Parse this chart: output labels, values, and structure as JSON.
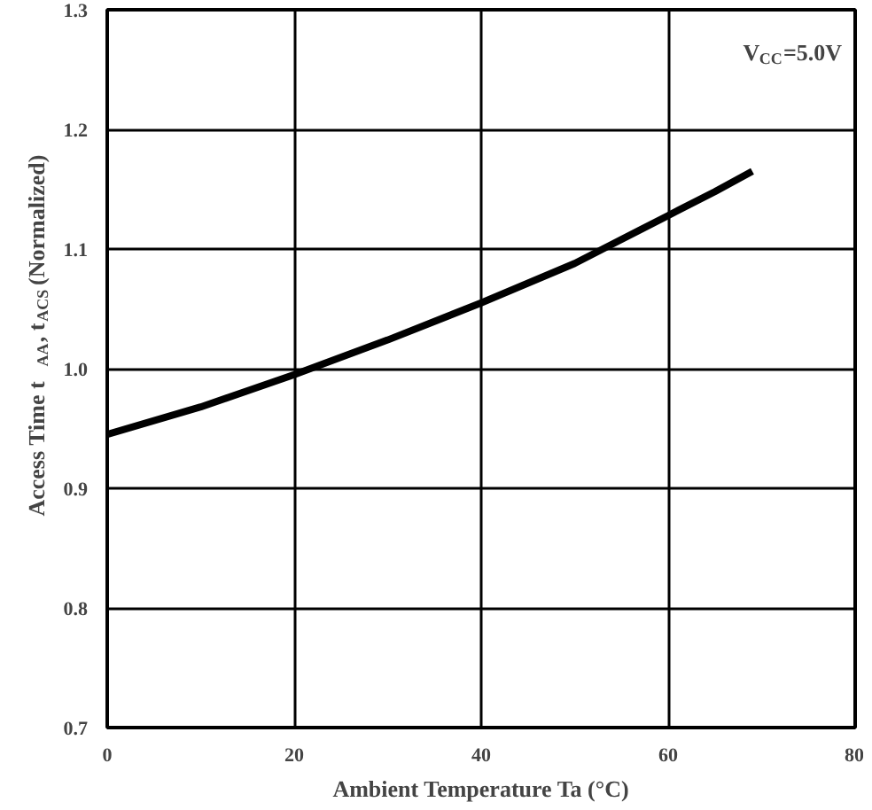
{
  "chart_data": {
    "type": "line",
    "xlabel": "Ambient Temperature Ta (°C)",
    "ylabel": "Access Time t$_{AA}$, t$_{ACS}$ (Normalized)",
    "annotations": [
      "V$_{CC}$=5.0V"
    ],
    "x": [
      0,
      10,
      20,
      30,
      40,
      50,
      53,
      60,
      65,
      69
    ],
    "series": [
      {
        "color": "#000000",
        "values": [
          0.945,
          0.968,
          0.995,
          1.024,
          1.055,
          1.088,
          1.1,
          1.128,
          1.148,
          1.165
        ]
      }
    ],
    "xlim": [
      0,
      80
    ],
    "ylim": [
      0.7,
      1.3
    ],
    "xticks": [
      0,
      20,
      40,
      60,
      80
    ],
    "yticks": [
      0.7,
      0.8,
      0.9,
      {
        "value": 1,
        "label": "1.0"
      },
      1.1,
      1.2,
      1.3
    ],
    "grid": true,
    "marker": "none",
    "line_style": "solid"
  }
}
